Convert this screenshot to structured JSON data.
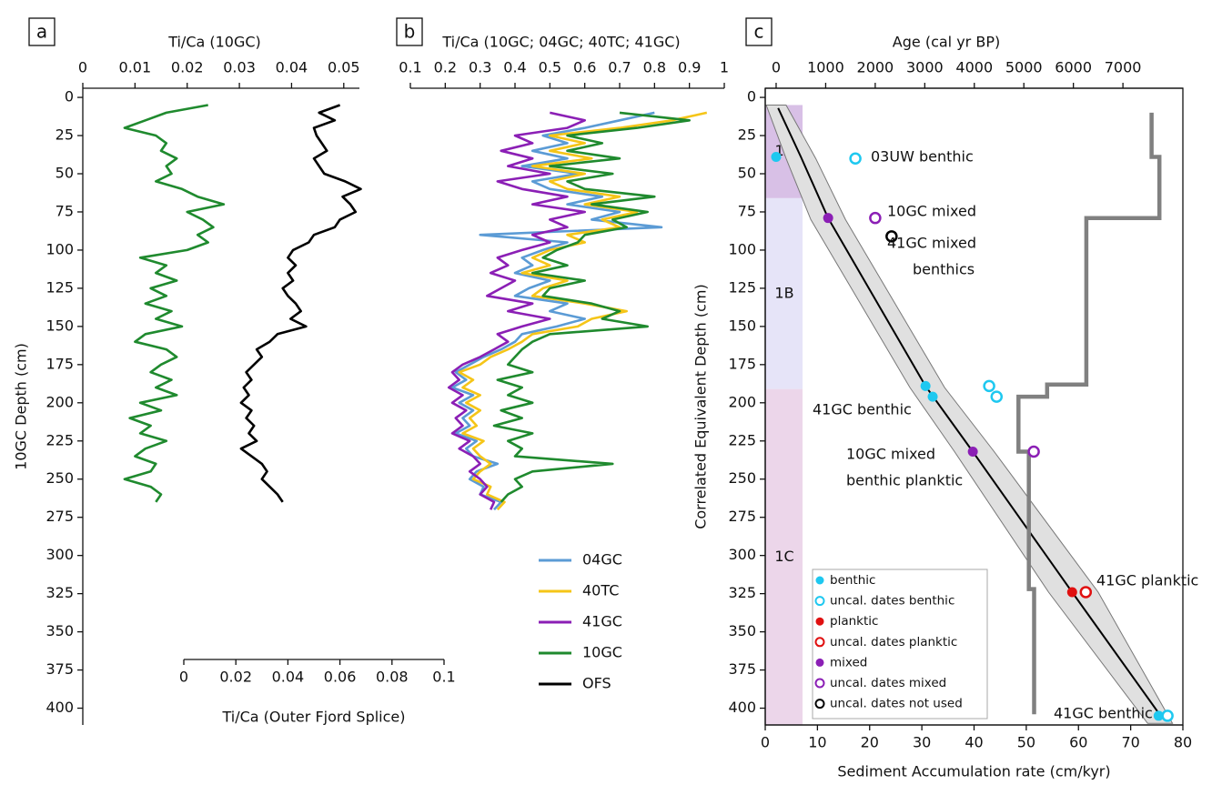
{
  "chart_data": [
    {
      "type": "line",
      "panel_label": "a",
      "xlabel": "Ti/Ca (10GC)",
      "xlim": [
        0,
        0.053
      ],
      "xticks": [
        0,
        0.01,
        0.02,
        0.03,
        0.04,
        0.05
      ],
      "x2label": "Ti/Ca (Outer Fjord Splice)",
      "x2lim": [
        0,
        0.1
      ],
      "x2ticks": [
        0,
        0.02,
        0.04,
        0.06,
        0.08,
        0.1
      ],
      "ylabel": "10GC Depth (cm)",
      "ylim": [
        -6,
        411
      ],
      "yticks": [
        0,
        25,
        50,
        75,
        100,
        125,
        150,
        175,
        200,
        225,
        250,
        275,
        300,
        325,
        350,
        375,
        400
      ],
      "depth": [
        5,
        10,
        15,
        20,
        25,
        30,
        35,
        40,
        45,
        50,
        55,
        60,
        65,
        70,
        75,
        80,
        85,
        90,
        95,
        100,
        105,
        110,
        115,
        120,
        125,
        130,
        135,
        140,
        145,
        150,
        155,
        160,
        165,
        170,
        175,
        180,
        185,
        190,
        195,
        200,
        205,
        210,
        215,
        220,
        225,
        230,
        235,
        240,
        245,
        250,
        255,
        260,
        265
      ],
      "series": [
        {
          "color": "#1f8a2e",
          "values": [
            0.024,
            0.016,
            0.012,
            0.008,
            0.014,
            0.016,
            0.015,
            0.018,
            0.016,
            0.017,
            0.014,
            0.019,
            0.022,
            0.027,
            0.02,
            0.023,
            0.025,
            0.022,
            0.024,
            0.02,
            0.011,
            0.016,
            0.014,
            0.018,
            0.013,
            0.016,
            0.012,
            0.017,
            0.014,
            0.019,
            0.012,
            0.01,
            0.016,
            0.018,
            0.015,
            0.013,
            0.017,
            0.014,
            0.018,
            0.011,
            0.015,
            0.009,
            0.013,
            0.011,
            0.016,
            0.012,
            0.01,
            0.014,
            0.013,
            0.008,
            0.013,
            0.015,
            0.014
          ]
        },
        {
          "name": "OFS",
          "color": "#000000",
          "axis": "x2",
          "values": [
            0.06,
            0.052,
            0.058,
            0.05,
            0.051,
            0.053,
            0.055,
            0.05,
            0.052,
            0.054,
            0.062,
            0.068,
            0.061,
            0.064,
            0.066,
            0.06,
            0.058,
            0.05,
            0.048,
            0.042,
            0.04,
            0.043,
            0.04,
            0.042,
            0.038,
            0.04,
            0.043,
            0.045,
            0.041,
            0.047,
            0.036,
            0.033,
            0.028,
            0.03,
            0.027,
            0.024,
            0.026,
            0.023,
            0.025,
            0.022,
            0.026,
            0.024,
            0.027,
            0.025,
            0.028,
            0.022,
            0.026,
            0.03,
            0.032,
            0.03,
            0.033,
            0.036,
            0.038
          ]
        }
      ]
    },
    {
      "type": "line",
      "panel_label": "b",
      "xlabel": "Ti/Ca (10GC; 04GC; 40TC; 41GC)",
      "xlim": [
        0.1,
        1
      ],
      "xticks": [
        0.1,
        0.2,
        0.3,
        0.4,
        0.5,
        0.6,
        0.7,
        0.8,
        0.9,
        1
      ],
      "ylim": [
        -6,
        411
      ],
      "depth": [
        10,
        15,
        20,
        25,
        30,
        35,
        40,
        45,
        50,
        55,
        60,
        65,
        70,
        75,
        80,
        85,
        90,
        95,
        100,
        105,
        110,
        115,
        120,
        125,
        130,
        135,
        140,
        145,
        150,
        155,
        160,
        165,
        170,
        175,
        180,
        185,
        190,
        195,
        200,
        205,
        210,
        215,
        220,
        225,
        230,
        235,
        240,
        245,
        250,
        255,
        260,
        265,
        270
      ],
      "series": [
        {
          "name": "04GC",
          "color": "#5b9bd5",
          "values": [
            0.8,
            0.7,
            0.6,
            0.48,
            0.55,
            0.45,
            0.55,
            0.42,
            0.58,
            0.45,
            0.5,
            0.65,
            0.55,
            0.7,
            0.62,
            0.82,
            0.3,
            0.55,
            0.48,
            0.42,
            0.45,
            0.4,
            0.5,
            0.44,
            0.4,
            0.55,
            0.5,
            0.6,
            0.52,
            0.42,
            0.4,
            0.36,
            0.31,
            0.27,
            0.23,
            0.26,
            0.22,
            0.28,
            0.24,
            0.28,
            0.25,
            0.27,
            0.23,
            0.29,
            0.26,
            0.28,
            0.35,
            0.29,
            0.27,
            0.31,
            0.3,
            0.36,
            0.34
          ]
        },
        {
          "name": "40TC",
          "color": "#f5c518",
          "values": [
            0.95,
            0.85,
            0.7,
            0.5,
            0.6,
            0.5,
            0.62,
            0.45,
            0.6,
            0.5,
            0.55,
            0.7,
            0.6,
            0.75,
            0.65,
            0.7,
            0.55,
            0.6,
            0.5,
            0.45,
            0.5,
            0.42,
            0.55,
            0.48,
            0.45,
            0.6,
            0.72,
            0.62,
            0.58,
            0.45,
            0.42,
            0.38,
            0.33,
            0.3,
            0.24,
            0.28,
            0.25,
            0.3,
            0.26,
            0.3,
            0.27,
            0.29,
            0.25,
            0.31,
            0.28,
            0.3,
            0.33,
            0.3,
            0.28,
            0.33,
            0.32,
            0.37,
            0.35
          ]
        },
        {
          "name": "41GC",
          "color": "#8b1fb5",
          "values": [
            0.5,
            0.6,
            0.55,
            0.4,
            0.45,
            0.36,
            0.45,
            0.38,
            0.5,
            0.35,
            0.42,
            0.55,
            0.45,
            0.6,
            0.5,
            0.55,
            0.45,
            0.5,
            0.42,
            0.35,
            0.38,
            0.33,
            0.4,
            0.36,
            0.32,
            0.45,
            0.38,
            0.5,
            0.42,
            0.35,
            0.38,
            0.34,
            0.3,
            0.25,
            0.22,
            0.24,
            0.21,
            0.25,
            0.22,
            0.26,
            0.23,
            0.25,
            0.22,
            0.27,
            0.24,
            0.28,
            0.3,
            0.27,
            0.3,
            0.32,
            0.3,
            0.34,
            0.33
          ]
        },
        {
          "name": "10GC",
          "color": "#1f8a2e",
          "values": [
            0.7,
            0.9,
            0.75,
            0.55,
            0.65,
            0.55,
            0.7,
            0.5,
            0.68,
            0.55,
            0.6,
            0.8,
            0.62,
            0.78,
            0.68,
            0.72,
            0.6,
            0.58,
            0.52,
            0.48,
            0.55,
            0.45,
            0.6,
            0.5,
            0.48,
            0.62,
            0.7,
            0.65,
            0.78,
            0.5,
            0.45,
            0.42,
            0.4,
            0.38,
            0.45,
            0.35,
            0.42,
            0.38,
            0.45,
            0.36,
            0.42,
            0.34,
            0.45,
            0.38,
            0.42,
            0.4,
            0.68,
            0.45,
            0.4,
            0.42,
            0.38,
            0.36,
            null
          ]
        }
      ]
    },
    {
      "type": "age-depth",
      "panel_label": "c",
      "xlabel": "Age (cal yr BP)",
      "xlim": [
        -220,
        8210
      ],
      "xticks": [
        0,
        1000,
        2000,
        3000,
        4000,
        5000,
        6000,
        7000
      ],
      "x2label": "Sediment Accumulation rate (cm/kyr)",
      "x2lim": [
        0,
        80
      ],
      "x2ticks": [
        0,
        10,
        20,
        30,
        40,
        50,
        60,
        70,
        80
      ],
      "ylabel": "Correlated Equivalent Depth (cm)",
      "ylim": [
        -6,
        411
      ],
      "yticks": [
        0,
        25,
        50,
        75,
        100,
        125,
        150,
        175,
        200,
        225,
        250,
        275,
        300,
        325,
        350,
        375,
        400
      ],
      "zones": [
        {
          "label": "1A",
          "top": 5,
          "bottom": 66,
          "color": "#d8c0e6"
        },
        {
          "label": "1B",
          "top": 66,
          "bottom": 191,
          "color": "#e6e4f8"
        },
        {
          "label": "1C",
          "top": 191,
          "bottom": 411,
          "color": "#ecd6ea"
        }
      ],
      "band": {
        "depth": [
          5,
          40,
          80,
          190,
          232,
          324,
          410
        ],
        "age_min": [
          -200,
          200,
          700,
          2700,
          3600,
          5500,
          7500
        ],
        "age_max": [
          200,
          800,
          1400,
          3400,
          4400,
          6500,
          8000
        ]
      },
      "model": {
        "depth": [
          7,
          39,
          79,
          189,
          232,
          324,
          405
        ],
        "age": [
          40,
          500,
          1050,
          3015,
          3970,
          5975,
          7760
        ]
      },
      "rate": {
        "color": "#808080",
        "depth": [
          10,
          39,
          39,
          79,
          79,
          188,
          188,
          196,
          196,
          232,
          232,
          322,
          322,
          404
        ],
        "values": [
          74,
          74,
          75.5,
          75.5,
          61.5,
          61.5,
          54,
          54,
          48.5,
          48.5,
          50.5,
          50.5,
          51.5,
          51.5
        ]
      },
      "points": [
        {
          "name": "benthic",
          "color": "#1ec8f0",
          "filled": true,
          "age": [
            0,
            3015,
            3160,
            7720
          ],
          "depth": [
            39,
            189,
            196,
            405
          ]
        },
        {
          "name": "uncal. dates benthic",
          "color": "#1ec8f0",
          "filled": false,
          "age": [
            1600,
            4300,
            4450,
            7900
          ],
          "depth": [
            40,
            189,
            196,
            405
          ]
        },
        {
          "name": "planktic",
          "color": "#e01010",
          "filled": true,
          "age": [
            5975
          ],
          "depth": [
            324
          ]
        },
        {
          "name": "uncal. dates planktic",
          "color": "#e01010",
          "filled": false,
          "age": [
            6250
          ],
          "depth": [
            324
          ]
        },
        {
          "name": "mixed",
          "color": "#8b1fb5",
          "filled": true,
          "age": [
            1050,
            3970
          ],
          "depth": [
            79,
            232
          ]
        },
        {
          "name": "uncal. dates mixed",
          "color": "#8b1fb5",
          "filled": false,
          "age": [
            2000,
            5200
          ],
          "depth": [
            79,
            232
          ]
        },
        {
          "name": "uncal. dates not used",
          "color": "#000000",
          "filled": false,
          "age": [
            2330
          ],
          "depth": [
            91
          ]
        }
      ],
      "annotations": [
        "03UW benthic",
        "10GC mixed",
        "41GC mixed",
        "benthics",
        "41GC benthic",
        "10GC mixed",
        "benthic planktic",
        "41GC planktic",
        "41GC benthic"
      ],
      "legend": "lower left"
    }
  ]
}
